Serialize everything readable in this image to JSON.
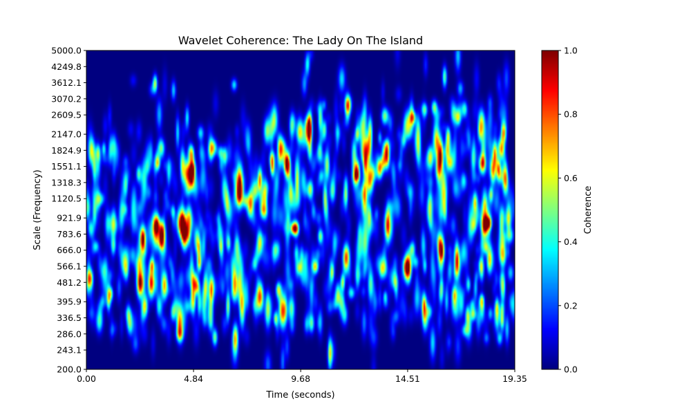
{
  "chart_data": {
    "type": "heatmap",
    "title": "Wavelet Coherence: The Lady On The Island",
    "xlabel": "Time (seconds)",
    "ylabel": "Scale (Frequency)",
    "colorbar_label": "Coherence",
    "colormap": "jet",
    "xlim": [
      0.0,
      19.35
    ],
    "ylim": [
      200.0,
      5000.0
    ],
    "yscale": "log",
    "x_ticks": [
      "0.00",
      "4.84",
      "9.68",
      "14.51",
      "19.35"
    ],
    "x_tick_values": [
      0.0,
      4.84,
      9.68,
      14.51,
      19.35
    ],
    "y_ticks": [
      "200.0",
      "243.1",
      "286.0",
      "336.5",
      "395.9",
      "481.2",
      "566.1",
      "666.0",
      "783.6",
      "921.9",
      "1120.5",
      "1318.3",
      "1551.1",
      "1824.9",
      "2147.0",
      "2609.5",
      "3070.2",
      "3612.1",
      "4249.8",
      "5000.0"
    ],
    "y_tick_values": [
      200.0,
      243.1,
      286.0,
      336.5,
      395.9,
      481.2,
      566.1,
      666.0,
      783.6,
      921.9,
      1120.5,
      1318.3,
      1551.1,
      1824.9,
      2147.0,
      2609.5,
      3070.2,
      3612.1,
      4249.8,
      5000.0
    ],
    "colorbar_ticks": [
      "0.0",
      "0.2",
      "0.4",
      "0.6",
      "0.8",
      "1.0"
    ],
    "colorbar_tick_values": [
      0.0,
      0.2,
      0.4,
      0.6,
      0.8,
      1.0
    ],
    "clim": [
      0.0,
      1.0
    ],
    "hotspots": [
      {
        "t": 2.4,
        "f": 481.2,
        "v": 0.95
      },
      {
        "t": 2.9,
        "f": 481.2,
        "v": 0.9
      },
      {
        "t": 3.5,
        "f": 470.0,
        "v": 0.7
      },
      {
        "t": 4.4,
        "f": 783.6,
        "v": 0.85
      },
      {
        "t": 4.6,
        "f": 921.9,
        "v": 0.6
      },
      {
        "t": 4.5,
        "f": 1451.0,
        "v": 0.6
      },
      {
        "t": 7.8,
        "f": 420.0,
        "v": 0.8
      },
      {
        "t": 10.0,
        "f": 2250.0,
        "v": 0.9
      },
      {
        "t": 11.7,
        "f": 620.0,
        "v": 0.7
      },
      {
        "t": 12.5,
        "f": 1824.9,
        "v": 0.55
      },
      {
        "t": 14.5,
        "f": 566.1,
        "v": 0.9
      },
      {
        "t": 14.5,
        "f": 2400.0,
        "v": 0.55
      },
      {
        "t": 16.0,
        "f": 666.0,
        "v": 0.8
      },
      {
        "t": 18.0,
        "f": 880.0,
        "v": 0.85
      },
      {
        "t": 0.2,
        "f": 1824.9,
        "v": 0.6
      },
      {
        "t": 18.9,
        "f": 1318.3,
        "v": 0.5
      }
    ]
  }
}
